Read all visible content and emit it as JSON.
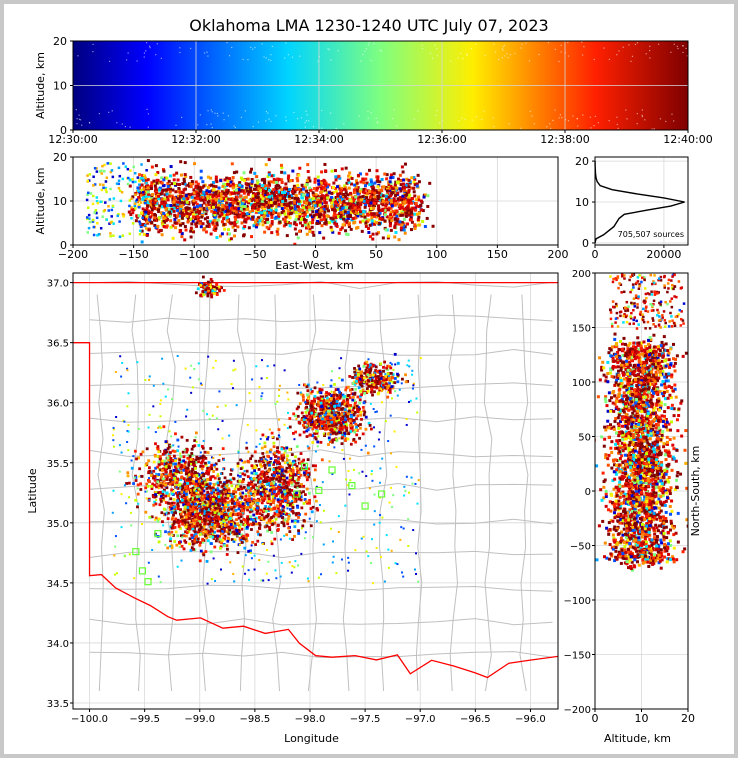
{
  "title": "Oklahoma LMA 1230-1240 UTC July 07, 2023",
  "colors": {
    "state_border": "#ff0000",
    "county_lines": "#c0c0c0",
    "grid": "#d8d8d8"
  },
  "chart_data": [
    {
      "type": "scatter",
      "name": "altitude-vs-time",
      "ylabel": "Altitude, km",
      "xlim": [
        "12:30:00",
        "12:40:00"
      ],
      "ylim": [
        0,
        20
      ],
      "x_ticks": [
        "12:30:00",
        "12:32:00",
        "12:34:00",
        "12:36:00",
        "12:38:00",
        "12:40:00"
      ],
      "y_ticks": [
        0,
        10,
        20
      ],
      "colormap": "jet (by time)"
    },
    {
      "type": "scatter",
      "name": "altitude-vs-east-west",
      "xlabel": "East-West, km",
      "ylabel": "Altitude, km",
      "xlim": [
        -200,
        200
      ],
      "ylim": [
        0,
        20
      ],
      "x_ticks": [
        -200,
        -150,
        -100,
        -50,
        0,
        50,
        100,
        150,
        200
      ],
      "y_ticks": [
        0,
        10,
        20
      ],
      "point_extent_x": [
        -190,
        110
      ]
    },
    {
      "type": "line",
      "name": "altitude-histogram",
      "xlim": [
        0,
        27000
      ],
      "ylim": [
        0,
        20
      ],
      "x_ticks": [
        0,
        20000
      ],
      "y_ticks": [
        0,
        10,
        20
      ],
      "annotation": "705,507 sources",
      "profile": [
        [
          0,
          0
        ],
        [
          300,
          1
        ],
        [
          2500,
          2
        ],
        [
          5500,
          4
        ],
        [
          7000,
          6
        ],
        [
          8500,
          7
        ],
        [
          15000,
          8
        ],
        [
          22000,
          9
        ],
        [
          26000,
          10
        ],
        [
          20000,
          11
        ],
        [
          12000,
          12
        ],
        [
          5000,
          13
        ],
        [
          1500,
          14
        ],
        [
          600,
          15
        ],
        [
          300,
          16
        ],
        [
          150,
          17
        ],
        [
          80,
          18
        ],
        [
          40,
          19
        ],
        [
          20,
          20
        ]
      ]
    },
    {
      "type": "scatter",
      "name": "plan-view-map",
      "xlabel": "Longitude",
      "ylabel": "Latitude",
      "xlim": [
        -100.15,
        -95.75
      ],
      "ylim": [
        33.45,
        37.08
      ],
      "x_ticks": [
        "-100.0",
        "-99.5",
        "-99.0",
        "-98.5",
        "-98.0",
        "-97.5",
        "-97.0",
        "-96.5",
        "-96.0"
      ],
      "y_ticks": [
        "33.5",
        "34.0",
        "34.5",
        "35.0",
        "35.5",
        "36.0",
        "36.5",
        "37.0"
      ],
      "stations": [
        [
          -98.05,
          35.47
        ],
        [
          -97.8,
          35.44
        ],
        [
          -98.12,
          35.24
        ],
        [
          -97.92,
          35.27
        ],
        [
          -97.62,
          35.31
        ],
        [
          -97.35,
          35.24
        ],
        [
          -97.5,
          35.14
        ],
        [
          -99.38,
          34.91
        ],
        [
          -99.52,
          34.6
        ],
        [
          -99.47,
          34.51
        ],
        [
          -99.58,
          34.76
        ]
      ]
    },
    {
      "type": "scatter",
      "name": "north-south-vs-altitude",
      "xlabel": "Altitude, km",
      "ylabel": "North-South, km",
      "xlim": [
        0,
        20
      ],
      "ylim": [
        -200,
        200
      ],
      "x_ticks": [
        0,
        10,
        20
      ],
      "y_ticks": [
        -200,
        -150,
        -100,
        -50,
        0,
        50,
        100,
        150,
        200
      ]
    }
  ]
}
